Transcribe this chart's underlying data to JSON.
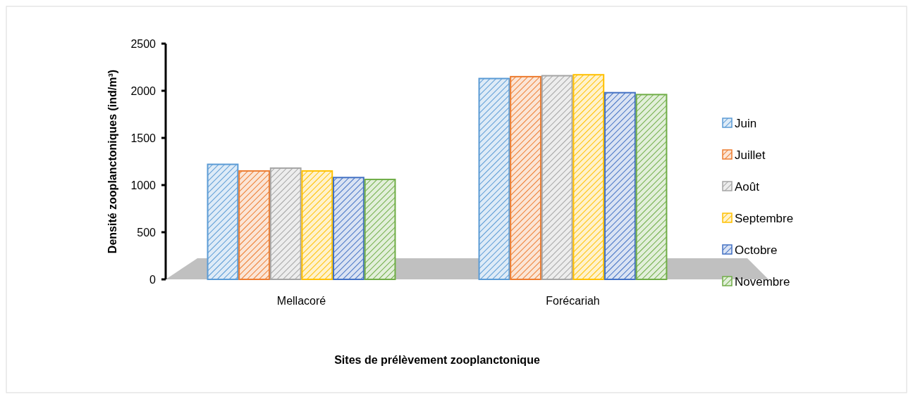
{
  "chart_data": {
    "type": "bar",
    "xlabel": "Sites de prélèvement zooplanctonique",
    "ylabel": "Densité zooplanctoniques  (ind/m³)",
    "categories": [
      "Mellacoré",
      "Forécariah"
    ],
    "series": [
      {
        "name": "Juin",
        "color": "#5b9bd5",
        "values": [
          1220,
          2130
        ]
      },
      {
        "name": "Juillet",
        "color": "#ed7d31",
        "values": [
          1150,
          2150
        ]
      },
      {
        "name": "Août",
        "color": "#a5a5a5",
        "values": [
          1180,
          2160
        ]
      },
      {
        "name": "Septembre",
        "color": "#ffc000",
        "values": [
          1150,
          2170
        ]
      },
      {
        "name": "Octobre",
        "color": "#4472c4",
        "values": [
          1080,
          1980
        ]
      },
      {
        "name": "Novembre",
        "color": "#70ad47",
        "values": [
          1060,
          1960
        ]
      }
    ],
    "ylim": [
      0,
      2500
    ],
    "yticks": [
      0,
      500,
      1000,
      1500,
      2000,
      2500
    ],
    "grid": false,
    "legend": "right"
  }
}
